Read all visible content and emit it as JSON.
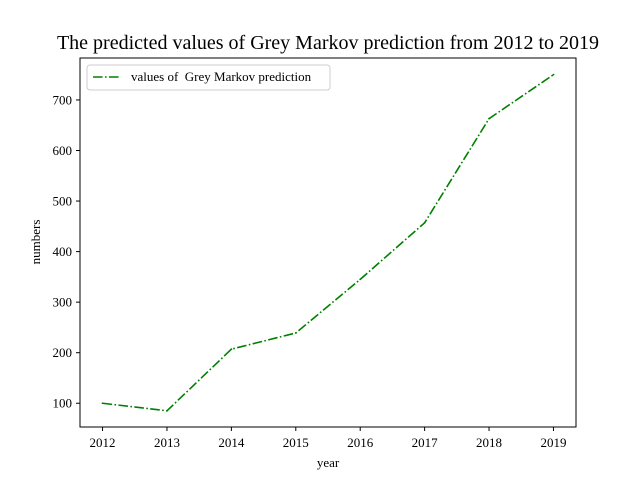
{
  "chart_data": {
    "type": "line",
    "title": "The predicted values of Grey Markov prediction from 2012 to 2019",
    "xlabel": "year",
    "ylabel": "numbers",
    "x": [
      2012,
      2013,
      2014,
      2015,
      2016,
      2017,
      2018,
      2019
    ],
    "xticks": [
      "2012",
      "2013",
      "2014",
      "2015",
      "2016",
      "2017",
      "2018",
      "2019"
    ],
    "yticks": [
      100,
      200,
      300,
      400,
      500,
      600,
      700
    ],
    "xlim": [
      2011.65,
      2019.35
    ],
    "ylim": [
      53,
      783
    ],
    "grid": false,
    "legend_position": "top-left",
    "series": [
      {
        "name": "values of  Grey Markov prediction",
        "color": "#008000",
        "linestyle": "dash-dot",
        "values": [
          100,
          85,
          207,
          239,
          345,
          457,
          663,
          750
        ]
      }
    ]
  }
}
